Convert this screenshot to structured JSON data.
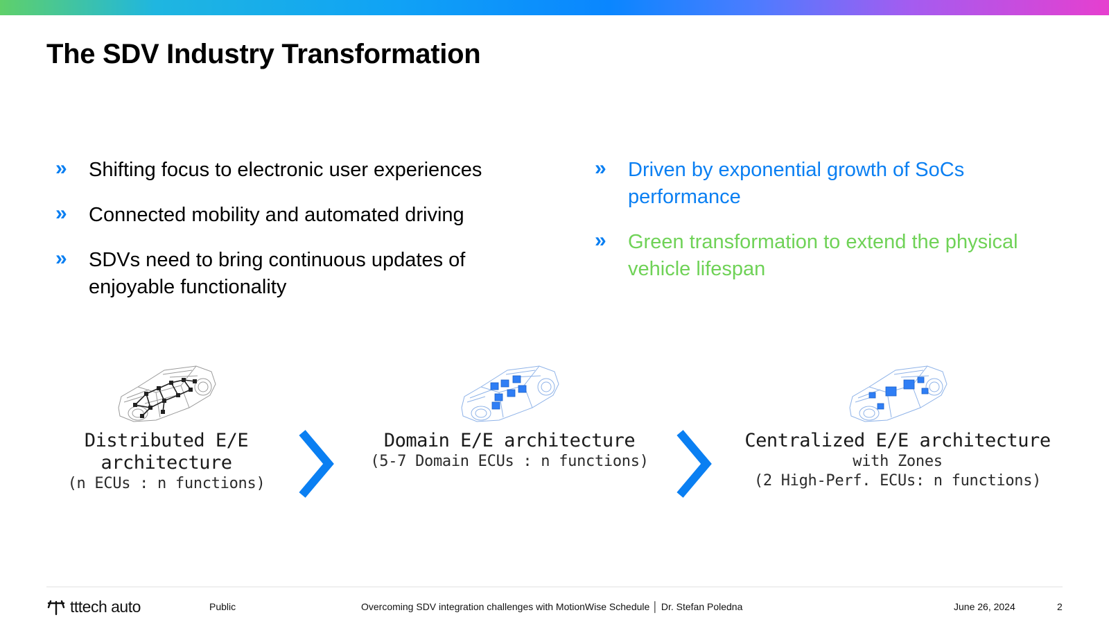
{
  "slide": {
    "title": "The SDV Industry Transformation"
  },
  "bullets_left": [
    {
      "text": "Shifting focus to electronic user experiences"
    },
    {
      "text": "Connected mobility and automated driving"
    },
    {
      "text": "SDVs need to bring continuous updates of enjoyable functionality"
    }
  ],
  "bullets_right": [
    {
      "text": "Driven by exponential growth of SoCs performance",
      "color": "#0a7ff2"
    },
    {
      "text": "Green transformation to extend the physical vehicle lifespan",
      "color": "#6fd257"
    }
  ],
  "bullet_marker": "»",
  "architectures": [
    {
      "name": "Distributed E/E architecture",
      "desc": "(n ECUs : n functions)"
    },
    {
      "name": "Domain E/E architecture",
      "desc": "(5-7 Domain ECUs : n functions)"
    },
    {
      "name": "Centralized E/E architecture",
      "desc_1": "with Zones",
      "desc_2": "(2 High-Perf. ECUs: n functions)"
    }
  ],
  "footer": {
    "logo_text": "tttech auto",
    "classification": "Public",
    "talk": "Overcoming SDV integration challenges with MotionWise Schedule │ Dr. Stefan Poledna",
    "date": "June 26, 2024",
    "page": "2"
  },
  "colors": {
    "accent_blue": "#0a7ff2",
    "accent_green": "#6fd257",
    "ecu_blue": "#2f7ef5"
  }
}
